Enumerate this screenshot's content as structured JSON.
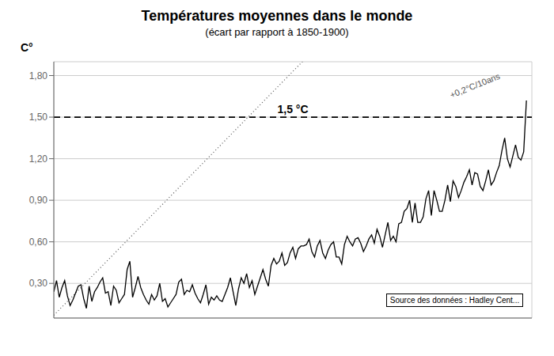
{
  "chart_data": {
    "type": "line",
    "title": "Températures moyennes dans le monde",
    "subtitle": "(écart par rapport à 1850-1900)",
    "y_label": "C°",
    "x": [
      1850,
      1851,
      1852,
      1853,
      1854,
      1855,
      1856,
      1857,
      1858,
      1859,
      1860,
      1861,
      1862,
      1863,
      1864,
      1865,
      1866,
      1867,
      1868,
      1869,
      1870,
      1871,
      1872,
      1873,
      1874,
      1875,
      1876,
      1877,
      1878,
      1879,
      1880,
      1881,
      1882,
      1883,
      1884,
      1885,
      1886,
      1887,
      1888,
      1889,
      1890,
      1891,
      1892,
      1893,
      1894,
      1895,
      1896,
      1897,
      1898,
      1899,
      1900,
      1901,
      1902,
      1903,
      1904,
      1905,
      1906,
      1907,
      1908,
      1909,
      1910,
      1911,
      1912,
      1913,
      1914,
      1915,
      1916,
      1917,
      1918,
      1919,
      1920,
      1921,
      1922,
      1923,
      1924,
      1925,
      1926,
      1927,
      1928,
      1929,
      1930,
      1931,
      1932,
      1933,
      1934,
      1935,
      1936,
      1937,
      1938,
      1939,
      1940,
      1941,
      1942,
      1943,
      1944,
      1945,
      1946,
      1947,
      1948,
      1949,
      1950,
      1951,
      1952,
      1953,
      1954,
      1955,
      1956,
      1957,
      1958,
      1959,
      1960,
      1961,
      1962,
      1963,
      1964,
      1965,
      1966,
      1967,
      1968,
      1969,
      1970,
      1971,
      1972,
      1973,
      1974,
      1975,
      1976,
      1977,
      1978,
      1979,
      1980,
      1981,
      1982,
      1983,
      1984,
      1985,
      1986,
      1987,
      1988,
      1989,
      1990,
      1991,
      1992,
      1993,
      1994,
      1995,
      1996,
      1997,
      1998,
      1999,
      2000,
      2001,
      2002,
      2003,
      2004,
      2005,
      2006,
      2007,
      2008,
      2009,
      2010,
      2011,
      2012,
      2013,
      2014,
      2015,
      2016,
      2017,
      2018,
      2019,
      2020,
      2021,
      2022,
      2023,
      2024
    ],
    "values": [
      0.24,
      0.32,
      0.2,
      0.27,
      0.32,
      0.21,
      0.14,
      0.18,
      0.23,
      0.28,
      0.29,
      0.19,
      0.12,
      0.28,
      0.17,
      0.24,
      0.27,
      0.31,
      0.34,
      0.23,
      0.24,
      0.14,
      0.28,
      0.25,
      0.16,
      0.19,
      0.22,
      0.4,
      0.46,
      0.2,
      0.27,
      0.35,
      0.27,
      0.22,
      0.18,
      0.15,
      0.22,
      0.18,
      0.21,
      0.3,
      0.17,
      0.19,
      0.13,
      0.16,
      0.19,
      0.22,
      0.31,
      0.33,
      0.22,
      0.25,
      0.24,
      0.29,
      0.23,
      0.19,
      0.16,
      0.22,
      0.29,
      0.15,
      0.2,
      0.18,
      0.21,
      0.18,
      0.17,
      0.22,
      0.27,
      0.34,
      0.24,
      0.14,
      0.26,
      0.34,
      0.3,
      0.37,
      0.27,
      0.32,
      0.22,
      0.28,
      0.34,
      0.4,
      0.33,
      0.28,
      0.43,
      0.48,
      0.44,
      0.46,
      0.52,
      0.43,
      0.45,
      0.52,
      0.56,
      0.48,
      0.55,
      0.57,
      0.57,
      0.58,
      0.62,
      0.53,
      0.49,
      0.57,
      0.61,
      0.52,
      0.48,
      0.54,
      0.58,
      0.6,
      0.49,
      0.49,
      0.44,
      0.58,
      0.64,
      0.6,
      0.57,
      0.62,
      0.63,
      0.59,
      0.53,
      0.57,
      0.62,
      0.65,
      0.59,
      0.69,
      0.64,
      0.56,
      0.65,
      0.74,
      0.61,
      0.64,
      0.6,
      0.73,
      0.74,
      0.82,
      0.84,
      0.9,
      0.74,
      0.88,
      0.74,
      0.74,
      0.78,
      0.91,
      0.97,
      0.79,
      0.97,
      0.9,
      0.82,
      0.82,
      0.9,
      1.01,
      0.89,
      1.04,
      1.0,
      0.92,
      0.97,
      1.03,
      1.07,
      1.12,
      1.01,
      1.1,
      1.09,
      1.0,
      0.97,
      1.04,
      1.12,
      1.01,
      1.04,
      1.1,
      1.15,
      1.26,
      1.35,
      1.2,
      1.14,
      1.22,
      1.3,
      1.21,
      1.19,
      1.25,
      1.62
    ],
    "color": "#000000",
    "xlim": [
      1850,
      2026
    ],
    "xticks": [
      1850,
      1880,
      1910,
      1940,
      1970,
      2000
    ],
    "ylim": [
      0.05,
      1.9
    ],
    "yticks": [
      {
        "value": 0.3,
        "label": "0,30"
      },
      {
        "value": 0.6,
        "label": "0,60"
      },
      {
        "value": 0.9,
        "label": "0,90"
      },
      {
        "value": 1.2,
        "label": "1,20"
      },
      {
        "value": 1.5,
        "label": "1,50"
      },
      {
        "value": 1.8,
        "label": "1,80"
      }
    ],
    "grid": true,
    "tick_labels": "y",
    "threshold": {
      "value": 1.5,
      "label": "1,5 °C",
      "color": "#000000",
      "line_style": "dashed"
    },
    "trend": {
      "x": [
        1850,
        2036
      ],
      "values": [
        0.07,
        3.79
      ],
      "label": "+0,2°C/10ans",
      "color": "#555555",
      "line_style": "dotted"
    },
    "source": "Source des données : Hadley Cent..."
  }
}
